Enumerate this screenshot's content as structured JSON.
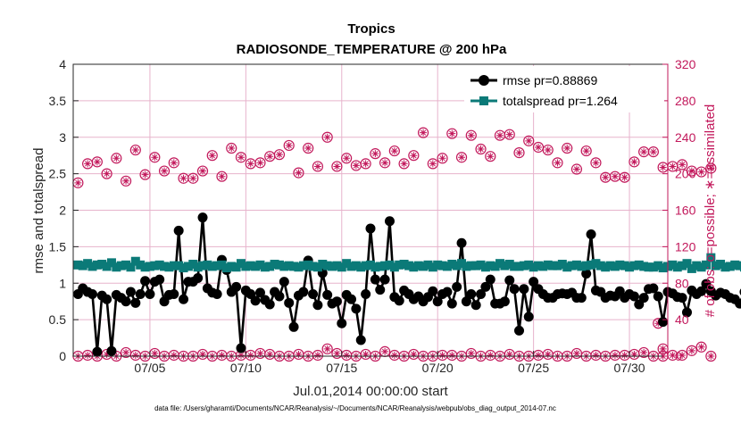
{
  "colors": {
    "rmse": "#000000",
    "spread": "#0b7a78",
    "obs": "#c2185b",
    "grid": "#e7b3cc",
    "axis": "#262626"
  },
  "chart_data": {
    "type": "line",
    "title": "Tropics",
    "subtitle": "RADIOSONDE_TEMPERATURE @ 200 hPa",
    "xlabel": "Jul.01,2014 00:00:00 start",
    "ylabel_left": "rmse and totalspread",
    "ylabel_right": "# of obs: o=possible; ∗=assimilated",
    "footer": "data file: /Users/gharamti/Documents/NCAR/Reanalysis/~/Documents/NCAR/Reanalysis/webpub/obs_diag_output_2014-07.nc",
    "x_ticks": [
      {
        "x": 5,
        "label": "07/05"
      },
      {
        "x": 10,
        "label": "07/10"
      },
      {
        "x": 15,
        "label": "07/15"
      },
      {
        "x": 20,
        "label": "07/20"
      },
      {
        "x": 25,
        "label": "07/25"
      },
      {
        "x": 30,
        "label": "07/30"
      }
    ],
    "xlim": [
      1,
      32
    ],
    "ylim_left": [
      0,
      4
    ],
    "ylim_right": [
      0,
      320
    ],
    "yticks_left": [
      "0",
      "0.5",
      "1",
      "1.5",
      "2",
      "2.5",
      "3",
      "3.5",
      "4"
    ],
    "yticks_left_values": [
      0,
      0.5,
      1,
      1.5,
      2,
      2.5,
      3,
      3.5,
      4
    ],
    "yticks_right": [
      "0",
      "40",
      "80",
      "120",
      "160",
      "200",
      "240",
      "280",
      "320"
    ],
    "yticks_right_values": [
      0,
      40,
      80,
      120,
      160,
      200,
      240,
      280,
      320
    ],
    "legend": [
      {
        "name": "rmse",
        "label": "rmse pr=0.88869"
      },
      {
        "name": "totalspread",
        "label": "totalspread pr=1.264"
      }
    ],
    "legend_position": "top-right",
    "series": [
      {
        "name": "rmse",
        "x_start": 1.25,
        "x_step": 0.25,
        "values": [
          0.85,
          0.93,
          0.88,
          0.85,
          0.06,
          0.83,
          0.78,
          0.07,
          0.84,
          0.8,
          0.75,
          0.88,
          0.73,
          0.85,
          1.03,
          0.85,
          1.02,
          1.05,
          0.75,
          0.84,
          0.85,
          1.72,
          0.78,
          1.02,
          1.02,
          1.07,
          1.9,
          0.93,
          0.87,
          0.85,
          1.32,
          1.18,
          0.88,
          0.95,
          0.11,
          0.9,
          0.85,
          0.76,
          0.87,
          0.77,
          0.71,
          0.88,
          0.82,
          1.02,
          0.73,
          0.4,
          0.83,
          0.88,
          1.31,
          0.85,
          0.7,
          1.14,
          0.84,
          0.72,
          0.75,
          0.45,
          0.84,
          0.78,
          0.65,
          0.22,
          0.85,
          1.75,
          1.05,
          0.91,
          1.05,
          1.85,
          0.81,
          0.76,
          0.9,
          0.85,
          0.78,
          0.82,
          0.75,
          0.81,
          0.89,
          0.75,
          0.85,
          0.88,
          0.72,
          0.95,
          1.55,
          0.75,
          0.85,
          0.7,
          0.85,
          0.95,
          1.05,
          0.72,
          0.72,
          0.75,
          1.04,
          0.92,
          0.35,
          0.92,
          0.54,
          1.02,
          0.92,
          0.85,
          0.8,
          0.8,
          0.85,
          0.86,
          0.85,
          0.87,
          0.8,
          0.8,
          1.13,
          1.67,
          0.9,
          0.88,
          0.8,
          0.83,
          0.82,
          0.89,
          0.8,
          0.85,
          0.82,
          0.71,
          0.8,
          0.92,
          0.93,
          0.82,
          0.47,
          0.88,
          0.86,
          0.81,
          0.8,
          0.6,
          0.9,
          0.85,
          0.89,
          0.99,
          0.89,
          0.83,
          0.87,
          0.85,
          0.8,
          0.78,
          0.72,
          0.88,
          0.86,
          0.83,
          0.82
        ]
      },
      {
        "name": "totalspread",
        "x_start": 1.25,
        "x_step": 0.25,
        "values": [
          1.25,
          1.24,
          1.27,
          1.23,
          1.25,
          1.26,
          1.23,
          1.28,
          1.22,
          1.24,
          1.25,
          1.22,
          1.3,
          1.25,
          1.22,
          1.23,
          1.24,
          1.25,
          1.23,
          1.22,
          1.24,
          1.24,
          1.21,
          1.23,
          1.26,
          1.22,
          1.24,
          1.25,
          1.23,
          1.24,
          1.25,
          1.21,
          1.23,
          1.22,
          1.27,
          1.23,
          1.24,
          1.23,
          1.25,
          1.22,
          1.23,
          1.26,
          1.25,
          1.23,
          1.24,
          1.23,
          1.22,
          1.24,
          1.25,
          1.23,
          1.22,
          1.26,
          1.24,
          1.23,
          1.24,
          1.22,
          1.27,
          1.23,
          1.24,
          1.22,
          1.24,
          1.25,
          1.22,
          1.23,
          1.24,
          1.25,
          1.22,
          1.25,
          1.26,
          1.24,
          1.22,
          1.24,
          1.23,
          1.25,
          1.22,
          1.25,
          1.24,
          1.23,
          1.26,
          1.24,
          1.27,
          1.23,
          1.24,
          1.24,
          1.25,
          1.22,
          1.24,
          1.23,
          1.27,
          1.24,
          1.26,
          1.23,
          1.23,
          1.24,
          1.25,
          1.22,
          1.24,
          1.23,
          1.25,
          1.24,
          1.24,
          1.26,
          1.22,
          1.24,
          1.25,
          1.23,
          1.24,
          1.25,
          1.27,
          1.24,
          1.22,
          1.24,
          1.23,
          1.25,
          1.24,
          1.22,
          1.24,
          1.25,
          1.23,
          1.22,
          1.22,
          1.24,
          1.21,
          1.23,
          1.25,
          1.22,
          1.24,
          1.27,
          1.2,
          1.24,
          1.22,
          1.25,
          1.35,
          1.24,
          1.26,
          1.22,
          1.23,
          1.25,
          1.24,
          1.22,
          1.24,
          1.22,
          1.21
        ]
      },
      {
        "name": "obs_possible",
        "axis": "right",
        "x_start": 1.25,
        "x_step": 0.5,
        "values": [
          190,
          211,
          213,
          200,
          217,
          192,
          226,
          199,
          218,
          203,
          212,
          195,
          195,
          203,
          220,
          197,
          228,
          218,
          211,
          212,
          219,
          221,
          231,
          201,
          228,
          208,
          240,
          208,
          217,
          209,
          211,
          222,
          212,
          225,
          211,
          220,
          245,
          211,
          217,
          244,
          218,
          242,
          227,
          219,
          242,
          243,
          223,
          236,
          229,
          226,
          212,
          228,
          205,
          225,
          212,
          196,
          197,
          196,
          213,
          224,
          224,
          207,
          208,
          210,
          203,
          202,
          206
        ]
      },
      {
        "name": "obs_assimilated",
        "axis": "right",
        "x_start": 1.25,
        "x_step": 0.5,
        "values": [
          190,
          211,
          213,
          200,
          217,
          192,
          226,
          199,
          218,
          203,
          212,
          195,
          195,
          203,
          220,
          197,
          228,
          218,
          211,
          212,
          219,
          221,
          231,
          201,
          228,
          208,
          240,
          208,
          217,
          209,
          211,
          222,
          212,
          225,
          211,
          220,
          245,
          211,
          217,
          244,
          218,
          242,
          227,
          219,
          242,
          243,
          223,
          236,
          229,
          226,
          212,
          228,
          205,
          225,
          212,
          196,
          197,
          196,
          213,
          224,
          224,
          207,
          208,
          210,
          203,
          202,
          206
        ]
      },
      {
        "name": "obs_low",
        "axis": "right",
        "x_start": 1.25,
        "x_step": 0.5,
        "values": [
          0,
          1,
          0,
          2,
          0,
          4,
          1,
          0,
          3,
          0,
          1,
          0,
          0,
          2,
          0,
          1,
          0,
          1,
          1,
          3,
          2,
          0,
          0,
          2,
          0,
          1,
          8,
          3,
          1,
          0,
          2,
          0,
          5,
          1,
          0,
          2,
          0,
          0,
          1,
          1,
          0,
          3,
          0,
          1,
          0,
          2,
          0,
          0,
          1,
          2,
          0,
          0,
          3,
          0,
          1,
          0,
          1,
          1,
          2,
          4,
          0,
          8,
          1,
          1,
          6,
          10,
          0
        ]
      },
      {
        "name": "obs_low_extra",
        "axis": "right",
        "points": [
          [
            31.5,
            36
          ],
          [
            31.75,
            0
          ]
        ]
      }
    ]
  }
}
